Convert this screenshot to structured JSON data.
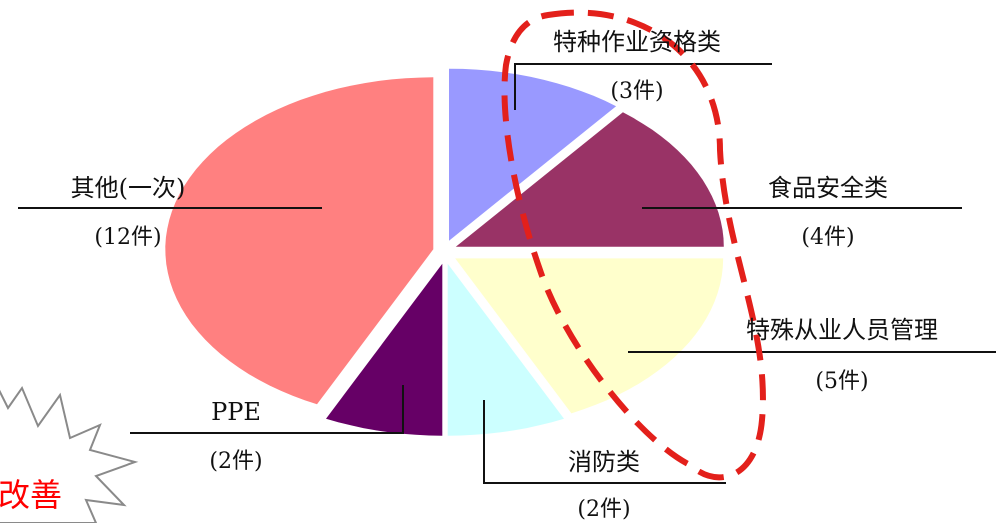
{
  "chart_data": {
    "type": "pie",
    "slices": [
      {
        "label": "特种作业资格类",
        "count_label": "(3件)",
        "value": 3,
        "color": "#9999ff"
      },
      {
        "label": "食品安全类",
        "count_label": "(4件)",
        "value": 4,
        "color": "#993366"
      },
      {
        "label": "特殊从业人员管理",
        "count_label": "(5件)",
        "value": 5,
        "color": "#ffffcc"
      },
      {
        "label": "消防类",
        "count_label": "(2件)",
        "value": 2,
        "color": "#ccffff"
      },
      {
        "label": "PPE",
        "count_label": "(2件)",
        "value": 2,
        "color": "#660066"
      },
      {
        "label": "其他(一次)",
        "count_label": "(12件)",
        "value": 12,
        "color": "#ff8080"
      }
    ]
  },
  "annotation": {
    "burst_text": "改善",
    "burst_color": "#ff0000",
    "highlight_color": "#e3201b"
  }
}
